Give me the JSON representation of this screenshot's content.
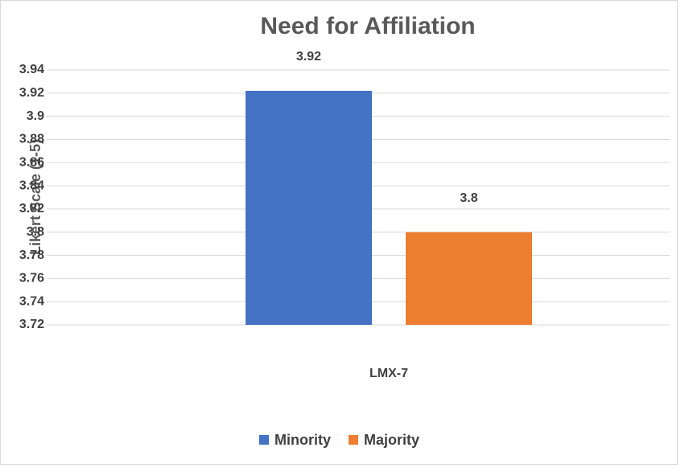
{
  "chart_data": {
    "type": "bar",
    "title": "Need for Affiliation",
    "y_label": "Likert Scale (1-5)",
    "categories": [
      "LMX-7"
    ],
    "series": [
      {
        "name": "Minority",
        "color": "#4472c4",
        "values": [
          3.922
        ],
        "value_labels": [
          "3.92"
        ]
      },
      {
        "name": "Majority",
        "color": "#ed7d31",
        "values": [
          3.8
        ],
        "value_labels": [
          "3.8"
        ]
      }
    ],
    "ylim": [
      3.72,
      3.94
    ],
    "yticks": [
      3.72,
      3.74,
      3.76,
      3.78,
      3.8,
      3.82,
      3.84,
      3.86,
      3.88,
      3.9,
      3.92,
      3.94
    ],
    "grid": true,
    "legend": "bottom"
  }
}
